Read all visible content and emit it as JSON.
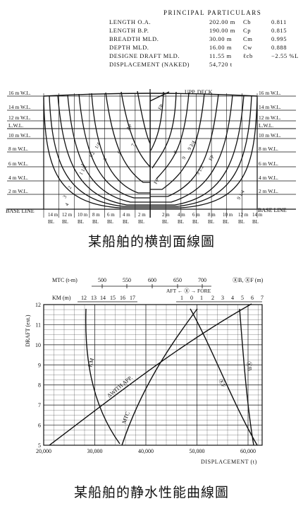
{
  "principal_particulars": {
    "title": "PRINCIPAL   PARTICULARS",
    "rows": [
      {
        "label": "LENGTH  O.A.",
        "value": "202.00 m",
        "coef": "Cb",
        "coef_value": "0.811"
      },
      {
        "label": "LENGTH  B.P.",
        "value": "190.00 m",
        "coef": "Cp",
        "coef_value": "0.815"
      },
      {
        "label": "BREADTH  MLD.",
        "value": "30.00 m",
        "coef": "Cm",
        "coef_value": "0.995"
      },
      {
        "label": "DEPTH  MLD.",
        "value": "16.00 m",
        "coef": "Cw",
        "coef_value": "0.888"
      },
      {
        "label": "DESIGNE  DRAFT  MLD.",
        "value": "11.55 m",
        "coef": "ℓcb",
        "coef_value": "−2.55 %L"
      },
      {
        "label": "DISPLACEMENT (NAKED)",
        "value": "54,720 t",
        "coef": "",
        "coef_value": ""
      }
    ]
  },
  "body_plan": {
    "waterlines_left": [
      "16 m W.L.",
      "14 m W.L.",
      "12 m W.L.",
      "L.W.L.",
      "10 m W.L.",
      "8 m W.L.",
      "6 m W.L.",
      "4 m W.L.",
      "2 m W.L."
    ],
    "waterlines_right": [
      "16 m W.L.",
      "14 m W.L.",
      "12 m W.L.",
      "L.W.L.",
      "10 m W.L.",
      "8 m W.L.",
      "6 m W.L.",
      "4 m W.L.",
      "2 m W.L."
    ],
    "base_line_label": "BASE  LINE",
    "deck_label": "UPP. DECK",
    "station_labels": [
      "AP",
      "FP",
      "FP",
      "1/4",
      "1/2",
      "1",
      "1 1/2",
      "2",
      "3",
      "4",
      "5",
      "6",
      "7",
      "8",
      "9",
      "9 1/4",
      "9 1/2",
      "9 3/4",
      "FP"
    ],
    "buttock_labels": [
      "14 m",
      "12 m",
      "10 m",
      "8 m",
      "6 m",
      "4 m",
      "2 m",
      "2 m",
      "4 m",
      "6 m",
      "8 m",
      "10 m",
      "12 m",
      "14 m"
    ],
    "bl_label": "BL",
    "caption": "某船舶的横剖面線圖"
  },
  "hydrostatics": {
    "caption": "某船舶的静水性能曲線圖",
    "y_axis_label": "DRAFT (ext.)",
    "y_ticks": [
      "12",
      "11",
      "10",
      "9",
      "8",
      "7",
      "6",
      "5"
    ],
    "x_axis_label": "DISPLACEMENT (t)",
    "x_ticks": [
      "20,000",
      "30,000",
      "40,000",
      "50,000",
      "60,000"
    ],
    "mtc_label": "MTC (t-m)",
    "mtc_ticks": [
      "500",
      "550",
      "600",
      "650",
      "700"
    ],
    "km_label": "KM (m)",
    "km_ticks": [
      "12",
      "13",
      "14",
      "15",
      "16",
      "17"
    ],
    "lcb_header": "ⓍB,  ⓍF (m)",
    "aft_fore": "AFT ← Ⓧ → FORE",
    "lcb_ticks": [
      "1",
      "0",
      "1",
      "2",
      "3",
      "4",
      "5",
      "6",
      "7"
    ],
    "curves": {
      "km": "KM",
      "disp": "ΔWITH APP.",
      "mtc": "MTC",
      "xf": "ⓍF",
      "xb": "ⓍB"
    }
  }
}
